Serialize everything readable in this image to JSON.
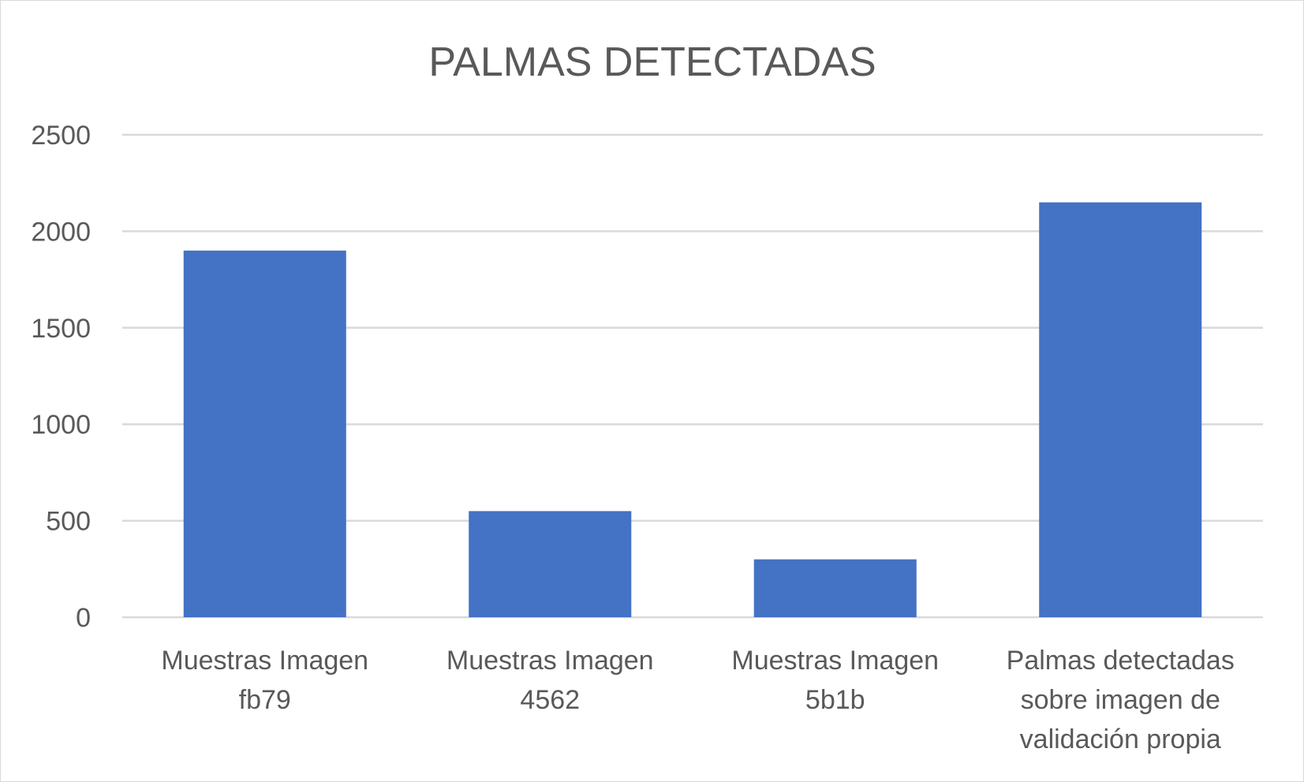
{
  "chart_data": {
    "type": "bar",
    "title": "PALMAS DETECTADAS",
    "categories": [
      [
        "Muestras Imagen",
        "fb79"
      ],
      [
        "Muestras Imagen",
        "4562"
      ],
      [
        "Muestras Imagen",
        "5b1b"
      ],
      [
        "Palmas detectadas",
        "sobre imagen de",
        "validación propia"
      ]
    ],
    "values": [
      1900,
      550,
      300,
      2150
    ],
    "ylim": [
      0,
      2500
    ],
    "yticks": [
      "0",
      "500",
      "1000",
      "1500",
      "2000",
      "2500"
    ],
    "grid": true,
    "bar_color": "#4472c4",
    "grid_color": "#d9d9d9"
  }
}
